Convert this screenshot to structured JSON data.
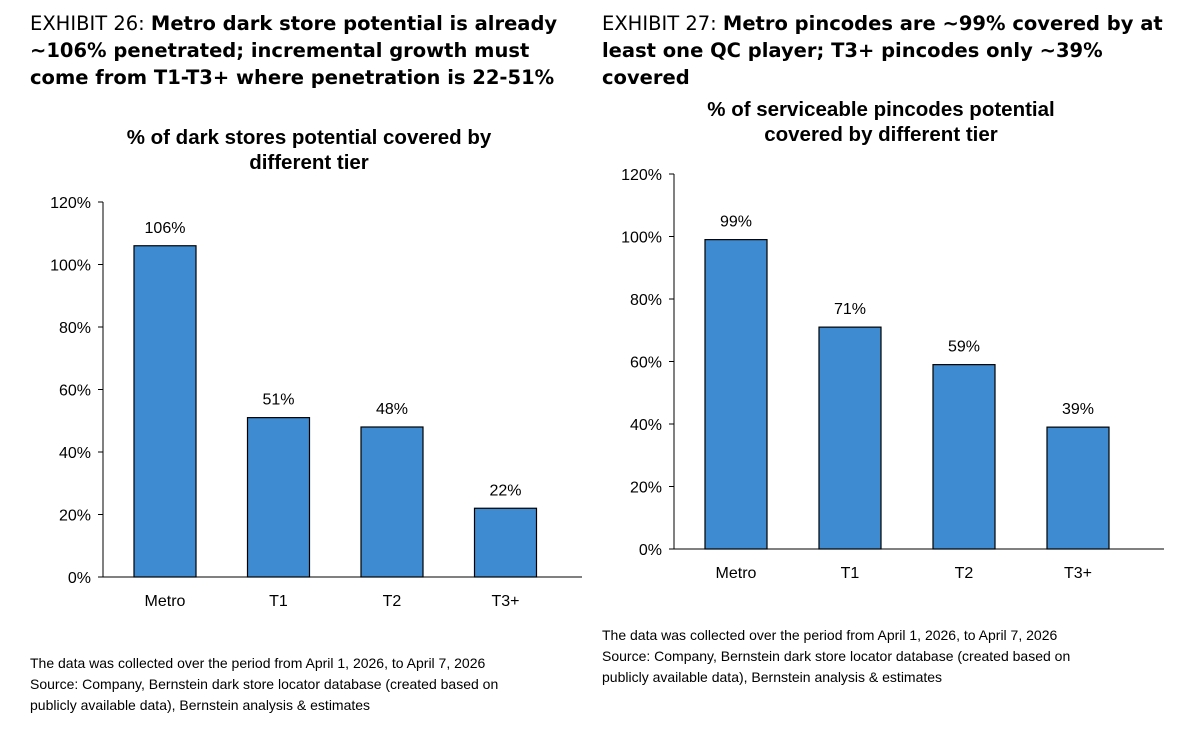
{
  "exhibits": [
    {
      "prefix": "EXHIBIT 26:",
      "headline": "Metro dark store potential is already ~106% penetrated; incremental growth must come from T1-T3+ where penetration is 22-51%",
      "notes": [
        "The data was collected over the period from April 1, 2026, to April 7, 2026",
        "Source: Company, Bernstein dark store locator database (created based on",
        "publicly available data), Bernstein analysis & estimates"
      ]
    },
    {
      "prefix": "EXHIBIT 27:",
      "headline": "Metro pincodes are ~99% covered by at least one QC player; T3+ pincodes only ~39% covered",
      "notes": [
        "The data was collected over the period from April 1, 2026, to April 7, 2026",
        "Source: Company, Bernstein dark store locator database (created based on",
        "publicly available data), Bernstein analysis & estimates"
      ]
    }
  ],
  "chart_data": [
    {
      "type": "bar",
      "title": [
        "% of dark stores potential covered by",
        "different tier"
      ],
      "categories": [
        "Metro",
        "T1",
        "T2",
        "T3+"
      ],
      "values": [
        106,
        51,
        48,
        22
      ],
      "value_labels": [
        "106%",
        "51%",
        "48%",
        "22%"
      ],
      "ylim": [
        0,
        120
      ],
      "yticks": [
        "0%",
        "20%",
        "40%",
        "60%",
        "80%",
        "100%",
        "120%"
      ],
      "grid": false,
      "bar_color": "#3F8BD1"
    },
    {
      "type": "bar",
      "title": [
        "% of serviceable pincodes potential",
        "covered by different tier"
      ],
      "categories": [
        "Metro",
        "T1",
        "T2",
        "T3+"
      ],
      "values": [
        99,
        71,
        59,
        39
      ],
      "value_labels": [
        "99%",
        "71%",
        "59%",
        "39%"
      ],
      "ylim": [
        0,
        120
      ],
      "yticks": [
        "0%",
        "20%",
        "40%",
        "60%",
        "80%",
        "100%",
        "120%"
      ],
      "grid": false,
      "bar_color": "#3F8BD1"
    }
  ]
}
